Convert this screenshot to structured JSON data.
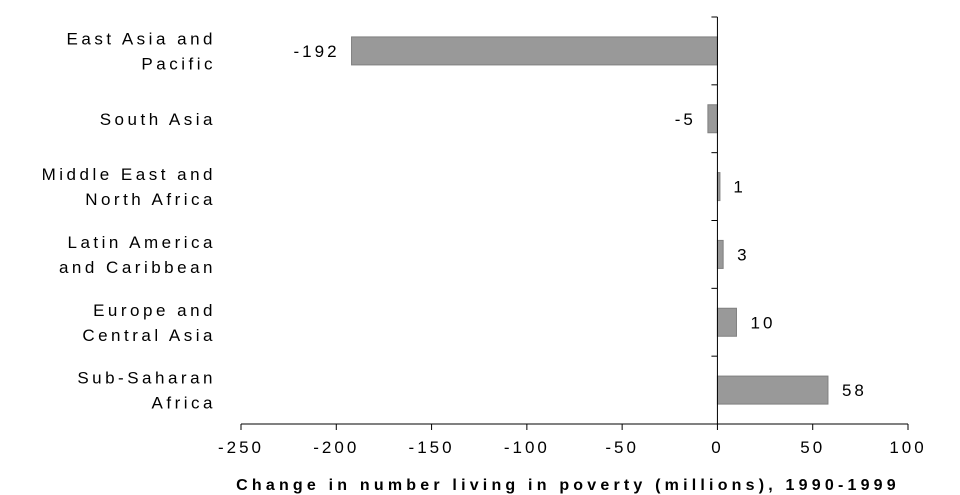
{
  "chart_data": {
    "type": "bar",
    "orientation": "horizontal",
    "categories": [
      [
        "East Asia and",
        "Pacific"
      ],
      [
        "South Asia"
      ],
      [
        "Middle East and",
        "North Africa"
      ],
      [
        "Latin America",
        "and Caribbean"
      ],
      [
        "Europe and",
        "Central Asia"
      ],
      [
        "Sub-Saharan",
        "Africa"
      ]
    ],
    "values": [
      -192,
      -5,
      1,
      3,
      10,
      58
    ],
    "value_labels": [
      "-192",
      "-5",
      "1",
      "3",
      "10",
      "58"
    ],
    "xlabel": "Change in number living in poverty (millions), 1990-1999",
    "xlim": [
      -250,
      100
    ],
    "xticks": [
      -250,
      -200,
      -150,
      -100,
      -50,
      0,
      50,
      100
    ],
    "xtick_labels": [
      "-250",
      "-200",
      "-150",
      "-100",
      "-50",
      "0",
      "50",
      "100"
    ],
    "grid": false,
    "legend": "none",
    "bar_color": "#999999",
    "bar_edge_color": "#808080"
  }
}
